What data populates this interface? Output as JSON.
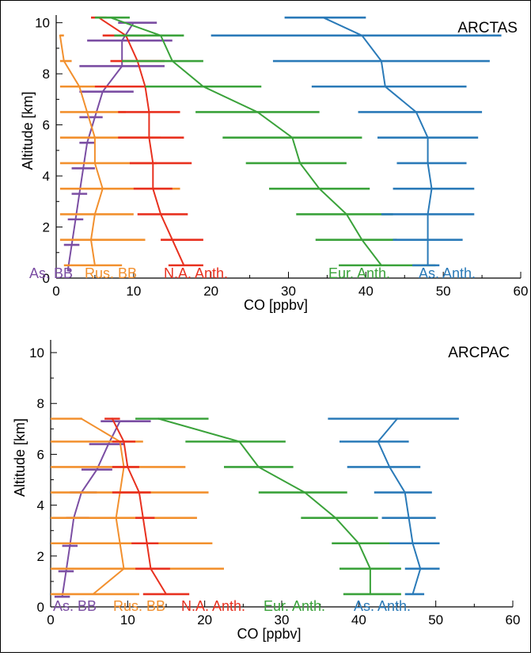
{
  "colors": {
    "as_bb": "#7b4ea3",
    "rus_bb": "#f2902e",
    "na_anth": "#e8311f",
    "eur_anth": "#3aa23a",
    "as_anth": "#2a7ab8"
  },
  "chart_data": [
    {
      "type": "line",
      "title": "ARCTAS",
      "xlabel": "CO [ppbv]",
      "ylabel": "Altitude [km]",
      "xlim": [
        0,
        60
      ],
      "ylim": [
        0,
        10.3
      ],
      "xticks": [
        "0",
        "10",
        "20",
        "30",
        "40",
        "50",
        "60"
      ],
      "yticks": [
        "0",
        "2",
        "4",
        "6",
        "8",
        "10"
      ],
      "grid": false,
      "legend_placement": "bottom",
      "series": [
        {
          "name": "As. BB",
          "key": "as_bb",
          "y": [
            0.3,
            1.3,
            2.3,
            3.3,
            4.3,
            5.3,
            6.3,
            7.3,
            8.3,
            9.3,
            10.0
          ],
          "x": [
            1.5,
            2.0,
            2.5,
            3.0,
            3.5,
            4.0,
            5.0,
            6.0,
            8.5,
            8.5,
            10.0
          ],
          "lo": [
            1.5,
            1.0,
            1.5,
            2.0,
            2.0,
            3.0,
            3.0,
            3.0,
            3.0,
            4.0,
            8.0
          ],
          "hi": [
            2.0,
            3.0,
            3.5,
            4.0,
            5.0,
            5.0,
            6.0,
            10.0,
            14.0,
            15.0,
            13.0
          ]
        },
        {
          "name": "Rus. BB",
          "key": "rus_bb",
          "y": [
            0.5,
            1.5,
            2.5,
            3.5,
            4.5,
            5.5,
            6.5,
            7.5,
            8.5,
            9.5
          ],
          "x": [
            5.0,
            4.5,
            5.0,
            6.0,
            5.0,
            5.0,
            4.0,
            3.0,
            1.0,
            0.5
          ],
          "lo": [
            1.0,
            0.5,
            0.5,
            0.5,
            0.5,
            0.5,
            0.5,
            0.5,
            0.5,
            0.5
          ],
          "hi": [
            8.5,
            11.5,
            10.0,
            16.0,
            13.0,
            13.5,
            9.0,
            6.0,
            2.0,
            1.0
          ]
        },
        {
          "name": "N.A. Anth.",
          "key": "na_anth",
          "y": [
            0.5,
            1.5,
            2.5,
            3.5,
            4.5,
            5.5,
            6.5,
            7.5,
            8.5,
            9.5,
            10.2
          ],
          "x": [
            16.5,
            15.0,
            13.5,
            12.5,
            12.5,
            12.0,
            12.0,
            11.5,
            10.5,
            9.0,
            5.5
          ],
          "lo": [
            14.5,
            13.5,
            10.5,
            10.0,
            9.5,
            8.0,
            8.0,
            5.0,
            7.0,
            6.0,
            4.5
          ],
          "hi": [
            19.0,
            19.0,
            17.0,
            15.0,
            17.5,
            16.5,
            16.0,
            18.0,
            14.0,
            11.5,
            6.5
          ]
        },
        {
          "name": "Eur. Anth.",
          "key": "eur_anth",
          "y": [
            0.5,
            1.5,
            2.5,
            3.5,
            4.5,
            5.5,
            6.5,
            7.5,
            8.5,
            9.5,
            10.2
          ],
          "x": [
            42.0,
            39.5,
            37.5,
            34.0,
            31.5,
            30.5,
            26.0,
            19.0,
            15.0,
            13.5,
            7.0
          ],
          "lo": [
            36.5,
            33.5,
            31.0,
            27.5,
            24.5,
            21.5,
            18.0,
            11.5,
            8.5,
            7.5,
            5.0
          ],
          "hi": [
            49.0,
            44.0,
            43.5,
            40.5,
            37.5,
            39.5,
            34.0,
            26.5,
            19.0,
            16.5,
            9.5
          ]
        },
        {
          "name": "As. Anth.",
          "key": "as_anth",
          "y": [
            0.5,
            1.5,
            2.5,
            3.5,
            4.5,
            5.5,
            6.5,
            7.5,
            8.5,
            9.5,
            10.2
          ],
          "x": [
            48.0,
            48.0,
            48.0,
            48.5,
            48.0,
            48.0,
            46.5,
            42.5,
            42.0,
            39.5,
            34.5
          ],
          "lo": [
            46.0,
            43.5,
            42.0,
            43.5,
            44.0,
            41.5,
            39.0,
            33.0,
            28.0,
            20.0,
            29.5
          ],
          "hi": [
            49.5,
            52.5,
            54.0,
            54.0,
            53.0,
            54.5,
            55.0,
            53.0,
            56.0,
            57.5,
            40.0
          ]
        }
      ]
    },
    {
      "type": "line",
      "title": "ARCPAC",
      "xlabel": "CO [ppbv]",
      "ylabel": "Altitude [km]",
      "xlim": [
        0,
        60
      ],
      "ylim": [
        0,
        10.5
      ],
      "xticks": [
        "0",
        "10",
        "20",
        "30",
        "40",
        "50",
        "60"
      ],
      "yticks": [
        "0",
        "2",
        "4",
        "6",
        "8",
        "10"
      ],
      "grid": false,
      "legend_placement": "bottom",
      "series": [
        {
          "name": "As. BB",
          "key": "as_bb",
          "y": [
            0.4,
            1.4,
            2.4,
            3.5,
            4.5,
            5.4,
            6.4,
            7.3
          ],
          "x": [
            1.5,
            2.0,
            2.5,
            3.0,
            4.0,
            6.0,
            7.5,
            9.0
          ],
          "lo": [
            0.5,
            1.0,
            1.5,
            2.0,
            2.5,
            4.0,
            5.0,
            6.5
          ],
          "hi": [
            2.5,
            3.0,
            3.5,
            5.0,
            6.0,
            8.0,
            9.5,
            13.0
          ]
        },
        {
          "name": "Rus. BB",
          "key": "rus_bb",
          "y": [
            0.5,
            1.5,
            2.5,
            3.5,
            4.5,
            5.5,
            6.5,
            7.4
          ],
          "x": [
            5.5,
            9.5,
            9.0,
            8.5,
            9.0,
            9.5,
            9.0,
            4.0
          ],
          "lo": [
            0.0,
            0.0,
            0.0,
            0.0,
            0.0,
            0.0,
            0.0,
            0.0
          ],
          "hi": [
            11.5,
            22.5,
            21.0,
            19.0,
            20.5,
            17.5,
            12.0,
            4.0
          ]
        },
        {
          "name": "N.A. Anth.",
          "key": "na_anth",
          "y": [
            0.5,
            1.5,
            2.5,
            3.5,
            4.5,
            5.5,
            6.5,
            7.4
          ],
          "x": [
            15.0,
            13.0,
            12.5,
            12.0,
            11.5,
            10.0,
            9.5,
            8.0
          ],
          "lo": [
            12.0,
            11.0,
            10.5,
            11.0,
            8.0,
            8.0,
            8.0,
            7.0
          ],
          "hi": [
            18.0,
            15.5,
            14.0,
            13.5,
            13.0,
            11.5,
            11.0,
            9.0
          ]
        },
        {
          "name": "Eur. Anth.",
          "key": "eur_anth",
          "y": [
            0.5,
            1.5,
            2.5,
            3.5,
            4.5,
            5.5,
            6.5,
            7.4
          ],
          "x": [
            41.5,
            41.5,
            40.0,
            37.0,
            33.0,
            27.0,
            24.5,
            14.0
          ],
          "lo": [
            38.0,
            37.5,
            36.5,
            32.5,
            27.0,
            22.5,
            17.5,
            11.0
          ],
          "hi": [
            45.5,
            45.5,
            45.0,
            42.5,
            38.5,
            31.5,
            30.5,
            20.5
          ]
        },
        {
          "name": "As. Anth.",
          "key": "as_anth",
          "y": [
            0.5,
            1.5,
            2.5,
            3.5,
            4.5,
            5.5,
            6.5,
            7.4
          ],
          "x": [
            47.0,
            48.0,
            47.0,
            46.5,
            46.0,
            44.0,
            42.5,
            45.0
          ],
          "lo": [
            46.0,
            46.0,
            44.0,
            43.0,
            42.0,
            38.5,
            37.5,
            36.0
          ],
          "hi": [
            48.5,
            50.5,
            50.5,
            50.0,
            49.5,
            48.0,
            46.5,
            53.0
          ]
        }
      ]
    }
  ]
}
